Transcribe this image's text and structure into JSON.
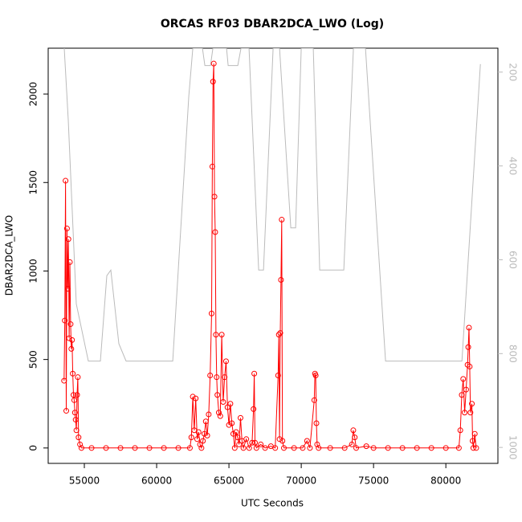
{
  "chart_data": {
    "type": "line",
    "title": "ORCAS RF03 DBAR2DCA_LWO (Log)",
    "xlabel": "UTC Seconds",
    "ylabel": "DBAR2DCA_LWO",
    "xlim": [
      52500,
      83600
    ],
    "xticks": [
      55000,
      60000,
      65000,
      70000,
      75000,
      80000
    ],
    "ylim": [
      -87,
      2259
    ],
    "yticks": [
      0,
      500,
      1000,
      1500,
      2000
    ],
    "y2lim": [
      1034,
      149
    ],
    "y2ticks": [
      200,
      400,
      600,
      800,
      1000
    ],
    "series": [
      {
        "name": "DBAR2DCA_LWO",
        "color": "#ff0000",
        "markers": true,
        "x": [
          53600,
          53650,
          53700,
          53750,
          53800,
          53850,
          53900,
          53950,
          54000,
          54050,
          54100,
          54150,
          54200,
          54250,
          54300,
          54350,
          54400,
          54450,
          54500,
          54550,
          54600,
          54700,
          54800,
          55500,
          56500,
          57500,
          58500,
          59500,
          60500,
          61500,
          62300,
          62400,
          62500,
          62600,
          62700,
          62800,
          62900,
          63000,
          63100,
          63200,
          63300,
          63400,
          63500,
          63600,
          63700,
          63800,
          63850,
          63900,
          63950,
          64000,
          64050,
          64100,
          64150,
          64200,
          64300,
          64400,
          64500,
          64600,
          64700,
          64800,
          64900,
          65000,
          65100,
          65200,
          65300,
          65400,
          65500,
          65600,
          65700,
          65800,
          65900,
          66000,
          66200,
          66400,
          66600,
          66700,
          66750,
          66800,
          66900,
          67200,
          67500,
          67900,
          68200,
          68400,
          68450,
          68500,
          68550,
          68600,
          68650,
          68700,
          68800,
          69500,
          70100,
          70400,
          70600,
          70900,
          70950,
          71000,
          71050,
          71100,
          71200,
          72000,
          73000,
          73500,
          73600,
          73700,
          73800,
          74500,
          75000,
          76000,
          77000,
          78000,
          79000,
          80000,
          80900,
          81000,
          81100,
          81200,
          81300,
          81400,
          81500,
          81550,
          81600,
          81650,
          81700,
          81800,
          81850,
          81900,
          82000,
          82100
        ],
        "values": [
          380,
          720,
          1510,
          210,
          1240,
          900,
          1180,
          620,
          1050,
          700,
          560,
          610,
          420,
          300,
          270,
          200,
          160,
          100,
          300,
          400,
          60,
          20,
          0,
          0,
          0,
          0,
          0,
          0,
          0,
          0,
          0,
          60,
          290,
          100,
          280,
          50,
          90,
          20,
          0,
          40,
          80,
          150,
          70,
          190,
          410,
          760,
          1590,
          2070,
          2172,
          1420,
          1220,
          640,
          400,
          300,
          200,
          180,
          640,
          260,
          400,
          490,
          230,
          130,
          250,
          140,
          80,
          0,
          90,
          60,
          20,
          170,
          40,
          0,
          50,
          0,
          30,
          220,
          420,
          30,
          0,
          20,
          0,
          10,
          0,
          410,
          640,
          50,
          650,
          950,
          1290,
          40,
          0,
          0,
          0,
          40,
          0,
          270,
          420,
          410,
          140,
          20,
          0,
          0,
          0,
          20,
          100,
          60,
          0,
          10,
          0,
          0,
          0,
          0,
          0,
          0,
          0,
          100,
          300,
          390,
          200,
          330,
          470,
          570,
          680,
          460,
          200,
          250,
          40,
          0,
          80,
          0
        ]
      },
      {
        "color": "#bbbbbb",
        "axis": "y2",
        "x": [
          53611,
          53889,
          54444,
          55278,
          56111,
          56556,
          56833,
          57389,
          57889,
          61111,
          62222,
          62500,
          63167,
          63333,
          63722,
          63889,
          64833,
          64944,
          65611,
          65833,
          66389,
          67056,
          67389,
          68056,
          68500,
          69278,
          69611,
          70000,
          70833,
          71278,
          72944,
          73611,
          74444,
          75833,
          81111,
          82389
        ],
        "values": [
          149,
          302,
          694,
          816,
          816,
          634,
          622,
          779,
          816,
          816,
          251,
          149,
          149,
          186,
          186,
          149,
          149,
          186,
          186,
          149,
          149,
          622,
          622,
          149,
          149,
          532,
          532,
          149,
          149,
          622,
          622,
          149,
          149,
          816,
          816,
          183
        ]
      }
    ]
  }
}
